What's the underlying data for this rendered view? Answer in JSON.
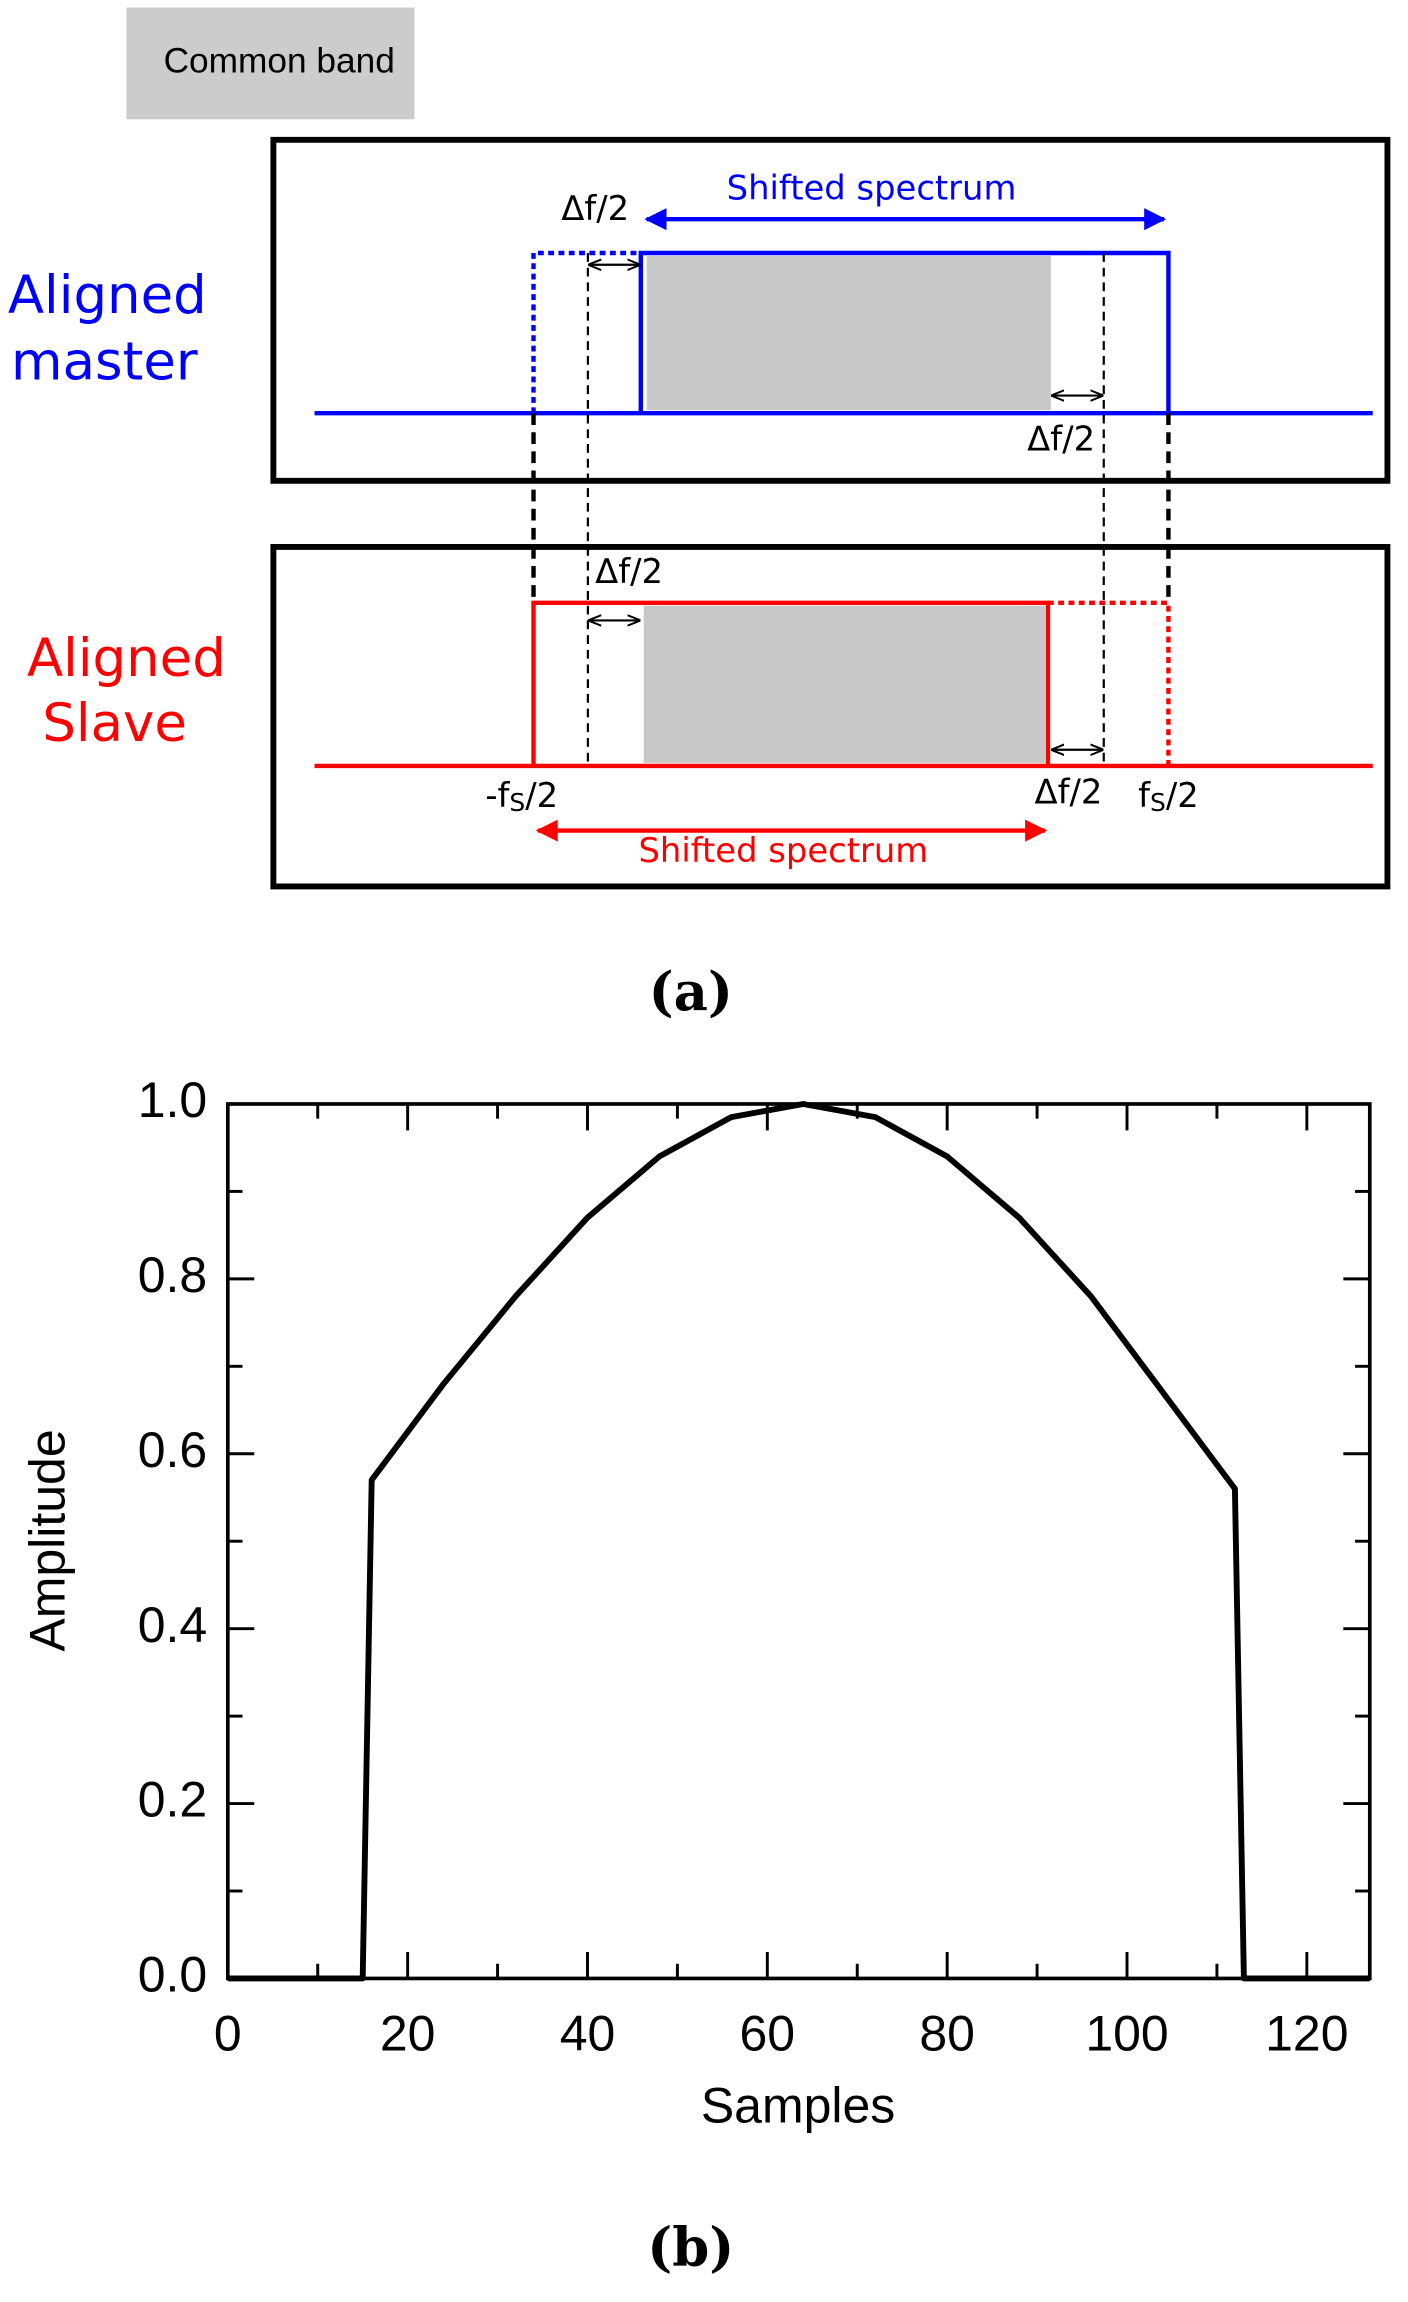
{
  "diagram": {
    "legend": "Common band",
    "master": {
      "label": [
        "Aligned",
        "master"
      ],
      "arrow_label": "Shifted spectrum",
      "delta_left": "Δf/2",
      "delta_right": "Δf/2"
    },
    "slave": {
      "label": [
        "Aligned",
        "Slave"
      ],
      "arrow_label": "Shifted spectrum",
      "delta_left": "Δf/2",
      "delta_right": "Δf/2",
      "left_edge": {
        "prefix": "-f",
        "sub": "S",
        "suffix": "/2"
      },
      "right_edge": {
        "prefix": "f",
        "sub": "S",
        "suffix": "/2"
      }
    },
    "caption": "(a)"
  },
  "chart_data": {
    "type": "line",
    "caption": "(b)",
    "xlabel": "Samples",
    "ylabel": "Amplitude",
    "color": "#000000",
    "x": [
      0,
      15,
      16,
      24,
      32,
      40,
      48,
      56,
      64,
      72,
      80,
      88,
      96,
      104,
      112,
      113,
      127
    ],
    "values": [
      0,
      0,
      0.57,
      0.68,
      0.78,
      0.87,
      0.94,
      0.985,
      1.0,
      0.985,
      0.94,
      0.87,
      0.78,
      0.67,
      0.56,
      0,
      0
    ],
    "xlim": [
      0,
      127
    ],
    "ylim": [
      0,
      1
    ],
    "xticks": [
      0,
      20,
      40,
      60,
      80,
      100,
      120
    ],
    "xticks_minor": [
      10,
      30,
      50,
      70,
      90,
      110
    ],
    "yticks": [
      {
        "value": 0,
        "label": "0.0"
      },
      {
        "value": 0.2,
        "label": "0.2"
      },
      {
        "value": 0.4,
        "label": "0.4"
      },
      {
        "value": 0.6,
        "label": "0.6"
      },
      {
        "value": 0.8,
        "label": "0.8"
      },
      {
        "value": 1,
        "label": "1.0"
      }
    ],
    "yticks_minor": [
      0.1,
      0.3,
      0.5,
      0.7,
      0.9
    ]
  }
}
